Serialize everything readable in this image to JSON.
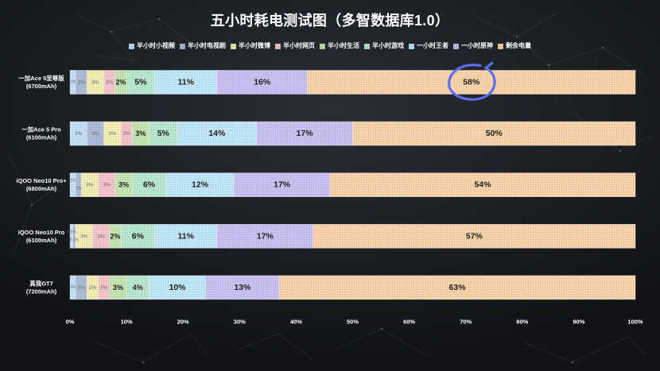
{
  "chart_data": {
    "type": "bar",
    "orientation": "horizontal",
    "stacked": true,
    "title": "五小时耗电测试图（多智数据库1.0）",
    "categories": [
      "一加Ace 5至尊版",
      "一加Ace 5 Pro",
      "iQOO Neo10 Pro+",
      "iQOO Neo10 Pro",
      "真我GT7"
    ],
    "category_sublabels": [
      "(6700mAh)",
      "(6100mAh)",
      "(6800mAh)",
      "(6100mAh)",
      "(7200mAh)"
    ],
    "series": [
      {
        "name": "半小时小视频",
        "color": "#c2dff6",
        "values": [
          1,
          3,
          1,
          0.5,
          1
        ]
      },
      {
        "name": "半小时电视剧",
        "color": "#aebbd6",
        "values": [
          2,
          3,
          1,
          0.5,
          2
        ]
      },
      {
        "name": "半小时微博",
        "color": "#f2eeb3",
        "values": [
          3,
          3,
          3,
          3,
          2
        ]
      },
      {
        "name": "半小时网页",
        "color": "#f4c4cb",
        "values": [
          2,
          2,
          3,
          3,
          2
        ]
      },
      {
        "name": "半小时生活",
        "color": "#c5e4b1",
        "values": [
          2,
          3,
          3,
          2,
          3
        ]
      },
      {
        "name": "半小时游戏",
        "color": "#b8e7cf",
        "values": [
          5,
          5,
          6,
          6,
          4
        ]
      },
      {
        "name": "一小时王者",
        "color": "#c0e7f7",
        "values": [
          11,
          14,
          12,
          11,
          10
        ]
      },
      {
        "name": "一小时原神",
        "color": "#c9c0f1",
        "values": [
          16,
          17,
          17,
          17,
          13
        ]
      },
      {
        "name": "剩余电量",
        "color": "#f8d2a9",
        "values": [
          58,
          50,
          54,
          57,
          63
        ]
      }
    ],
    "value_suffix": "%",
    "xlim": [
      0,
      100
    ],
    "x_ticks": [
      0,
      10,
      20,
      30,
      40,
      50,
      60,
      70,
      80,
      90,
      100
    ],
    "x_tick_labels": [
      "0%",
      "10%",
      "20%",
      "30%",
      "40%",
      "50%",
      "60%",
      "70%",
      "80%",
      "90%",
      "100%"
    ],
    "grid": false,
    "legend_position": "top",
    "highlight": {
      "category_index": 0,
      "series_index": 8,
      "color": "#5a6ef2"
    }
  }
}
